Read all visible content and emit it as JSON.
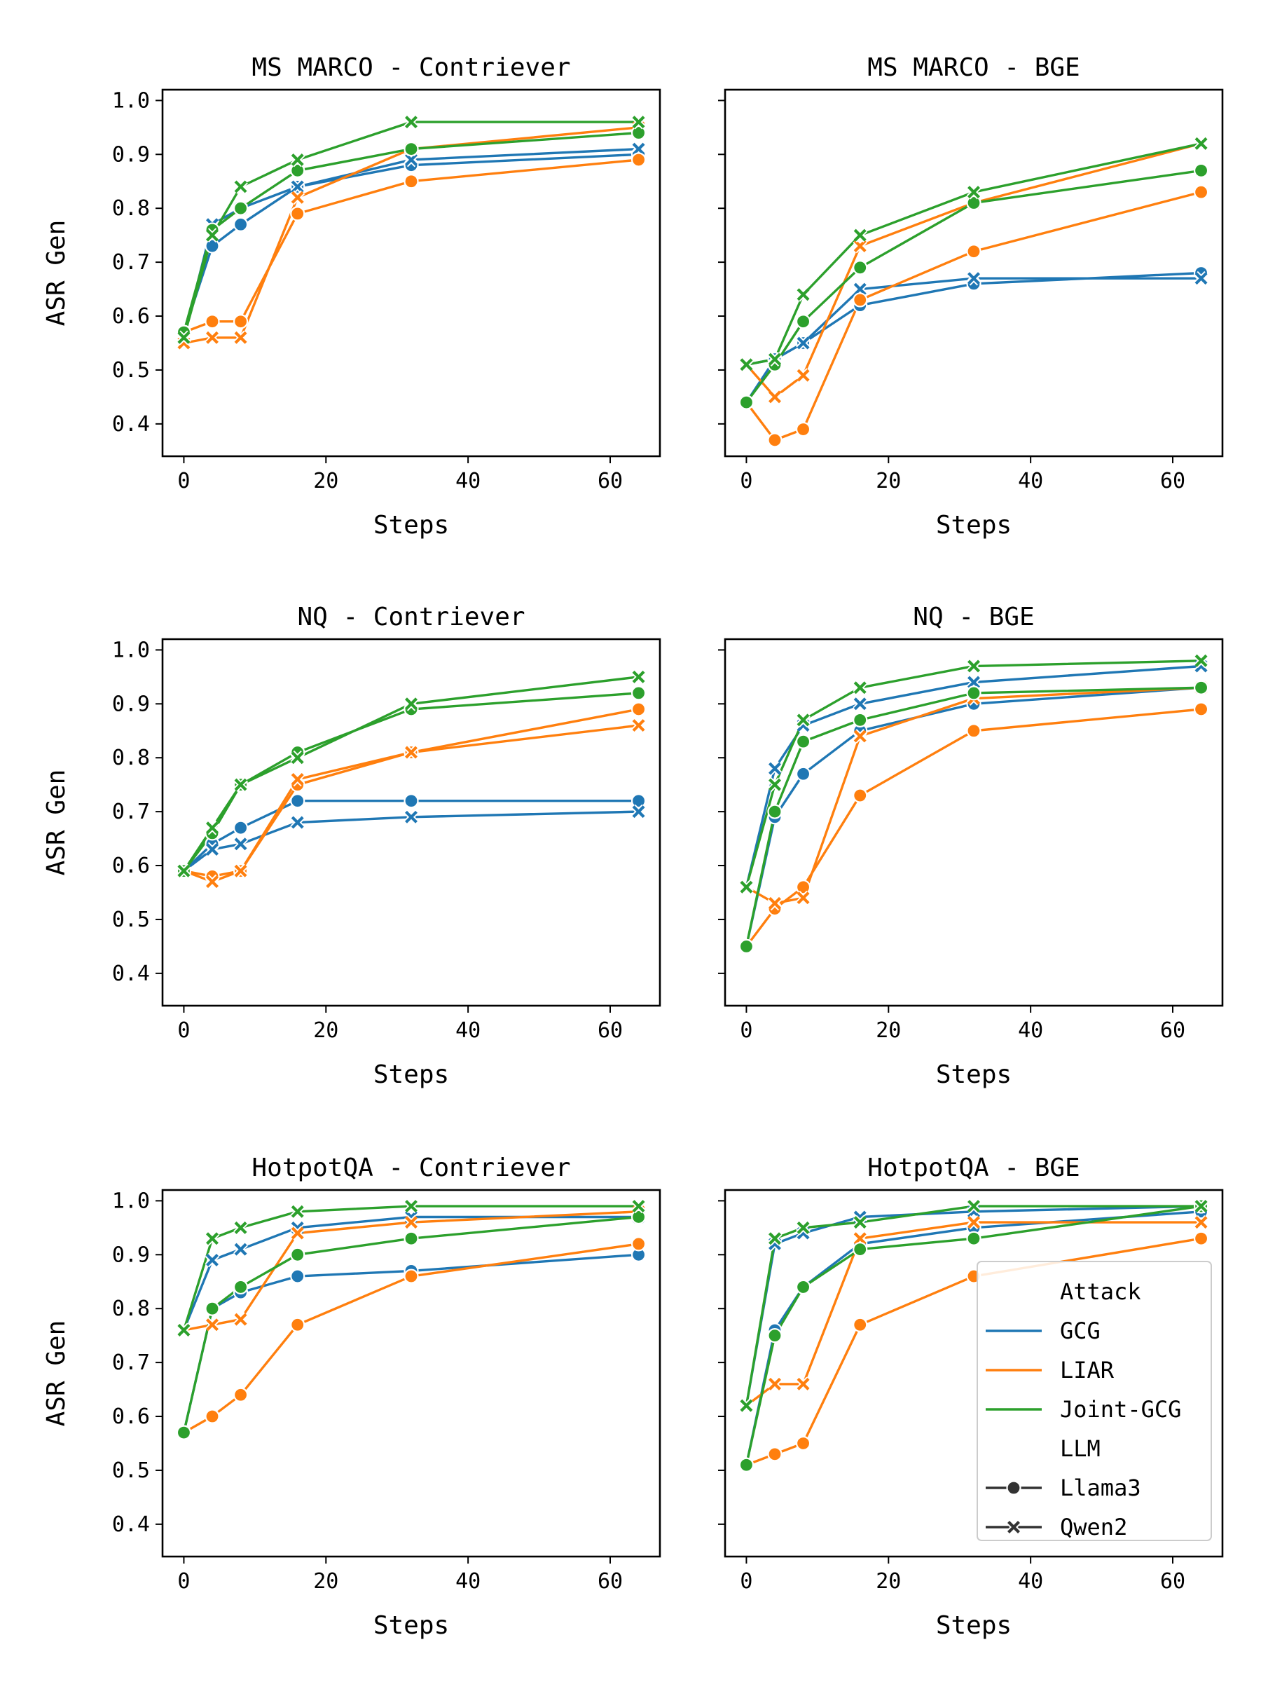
{
  "figure": {
    "attack_colors": {
      "GCG": "#1f77b4",
      "LIAR": "#ff7f0e",
      "Joint-GCG": "#2ca02c"
    },
    "marker_color_text": "#333333",
    "legend": {
      "attack_title": "Attack",
      "attack_entries": [
        "GCG",
        "LIAR",
        "Joint-GCG"
      ],
      "llm_title": "LLM",
      "llm_entries": [
        {
          "label": "Llama3",
          "marker": "circle"
        },
        {
          "label": "Qwen2",
          "marker": "x"
        }
      ],
      "placement": "lower-right of HotpotQA - BGE panel"
    }
  },
  "chart_data": [
    {
      "type": "line",
      "title": "MS MARCO - Contriever",
      "xlabel": "Steps",
      "ylabel": "ASR Gen",
      "xlim": [
        -3,
        67
      ],
      "ylim": [
        0.34,
        1.02
      ],
      "xticks": [
        "0",
        "20",
        "40",
        "60"
      ],
      "yticks": [
        "0.4",
        "0.5",
        "0.6",
        "0.7",
        "0.8",
        "0.9",
        "1.0"
      ],
      "x": [
        0,
        4,
        8,
        16,
        32,
        64
      ],
      "series": [
        {
          "name": "GCG / Llama3",
          "attack": "GCG",
          "llm": "Llama3",
          "values": [
            0.57,
            0.73,
            0.77,
            0.84,
            0.88,
            0.9
          ]
        },
        {
          "name": "GCG / Qwen2",
          "attack": "GCG",
          "llm": "Qwen2",
          "values": [
            0.56,
            0.77,
            0.8,
            0.84,
            0.89,
            0.91
          ]
        },
        {
          "name": "LIAR / Llama3",
          "attack": "LIAR",
          "llm": "Llama3",
          "values": [
            0.57,
            0.59,
            0.59,
            0.79,
            0.85,
            0.89
          ]
        },
        {
          "name": "LIAR / Qwen2",
          "attack": "LIAR",
          "llm": "Qwen2",
          "values": [
            0.55,
            0.56,
            0.56,
            0.82,
            0.91,
            0.95
          ]
        },
        {
          "name": "Joint-GCG / Llama3",
          "attack": "Joint-GCG",
          "llm": "Llama3",
          "values": [
            0.57,
            0.76,
            0.8,
            0.87,
            0.91,
            0.94
          ]
        },
        {
          "name": "Joint-GCG / Qwen2",
          "attack": "Joint-GCG",
          "llm": "Qwen2",
          "values": [
            0.56,
            0.75,
            0.84,
            0.89,
            0.96,
            0.96
          ]
        }
      ]
    },
    {
      "type": "line",
      "title": "MS MARCO - BGE",
      "xlabel": "Steps",
      "ylabel": "",
      "xlim": [
        -3,
        67
      ],
      "ylim": [
        0.34,
        1.02
      ],
      "xticks": [
        "0",
        "20",
        "40",
        "60"
      ],
      "yticks": [],
      "x": [
        0,
        4,
        8,
        16,
        32,
        64
      ],
      "series": [
        {
          "name": "GCG / Llama3",
          "attack": "GCG",
          "llm": "Llama3",
          "values": [
            0.44,
            0.52,
            0.55,
            0.62,
            0.66,
            0.68
          ]
        },
        {
          "name": "GCG / Qwen2",
          "attack": "GCG",
          "llm": "Qwen2",
          "values": [
            0.51,
            0.52,
            0.55,
            0.65,
            0.67,
            0.67
          ]
        },
        {
          "name": "LIAR / Llama3",
          "attack": "LIAR",
          "llm": "Llama3",
          "values": [
            0.44,
            0.37,
            0.39,
            0.63,
            0.72,
            0.83
          ]
        },
        {
          "name": "LIAR / Qwen2",
          "attack": "LIAR",
          "llm": "Qwen2",
          "values": [
            0.51,
            0.45,
            0.49,
            0.73,
            0.81,
            0.92
          ]
        },
        {
          "name": "Joint-GCG / Llama3",
          "attack": "Joint-GCG",
          "llm": "Llama3",
          "values": [
            0.44,
            0.51,
            0.59,
            0.69,
            0.81,
            0.87
          ]
        },
        {
          "name": "Joint-GCG / Qwen2",
          "attack": "Joint-GCG",
          "llm": "Qwen2",
          "values": [
            0.51,
            0.52,
            0.64,
            0.75,
            0.83,
            0.92
          ]
        }
      ]
    },
    {
      "type": "line",
      "title": "NQ - Contriever",
      "xlabel": "Steps",
      "ylabel": "ASR Gen",
      "xlim": [
        -3,
        67
      ],
      "ylim": [
        0.34,
        1.02
      ],
      "xticks": [
        "0",
        "20",
        "40",
        "60"
      ],
      "yticks": [
        "0.4",
        "0.5",
        "0.6",
        "0.7",
        "0.8",
        "0.9",
        "1.0"
      ],
      "x": [
        0,
        4,
        8,
        16,
        32,
        64
      ],
      "series": [
        {
          "name": "GCG / Llama3",
          "attack": "GCG",
          "llm": "Llama3",
          "values": [
            0.59,
            0.64,
            0.67,
            0.72,
            0.72,
            0.72
          ]
        },
        {
          "name": "GCG / Qwen2",
          "attack": "GCG",
          "llm": "Qwen2",
          "values": [
            0.59,
            0.63,
            0.64,
            0.68,
            0.69,
            0.7
          ]
        },
        {
          "name": "LIAR / Llama3",
          "attack": "LIAR",
          "llm": "Llama3",
          "values": [
            0.59,
            0.58,
            0.59,
            0.75,
            0.81,
            0.89
          ]
        },
        {
          "name": "LIAR / Qwen2",
          "attack": "LIAR",
          "llm": "Qwen2",
          "values": [
            0.59,
            0.57,
            0.59,
            0.76,
            0.81,
            0.86
          ]
        },
        {
          "name": "Joint-GCG / Llama3",
          "attack": "Joint-GCG",
          "llm": "Llama3",
          "values": [
            0.59,
            0.66,
            0.75,
            0.81,
            0.89,
            0.92
          ]
        },
        {
          "name": "Joint-GCG / Qwen2",
          "attack": "Joint-GCG",
          "llm": "Qwen2",
          "values": [
            0.59,
            0.67,
            0.75,
            0.8,
            0.9,
            0.95
          ]
        }
      ]
    },
    {
      "type": "line",
      "title": "NQ - BGE",
      "xlabel": "Steps",
      "ylabel": "",
      "xlim": [
        -3,
        67
      ],
      "ylim": [
        0.34,
        1.02
      ],
      "xticks": [
        "0",
        "20",
        "40",
        "60"
      ],
      "yticks": [],
      "x": [
        0,
        4,
        8,
        16,
        32,
        64
      ],
      "series": [
        {
          "name": "GCG / Llama3",
          "attack": "GCG",
          "llm": "Llama3",
          "values": [
            0.45,
            0.69,
            0.77,
            0.85,
            0.9,
            0.93
          ]
        },
        {
          "name": "GCG / Qwen2",
          "attack": "GCG",
          "llm": "Qwen2",
          "values": [
            0.56,
            0.78,
            0.86,
            0.9,
            0.94,
            0.97
          ]
        },
        {
          "name": "LIAR / Llama3",
          "attack": "LIAR",
          "llm": "Llama3",
          "values": [
            0.45,
            0.52,
            0.56,
            0.73,
            0.85,
            0.89
          ]
        },
        {
          "name": "LIAR / Qwen2",
          "attack": "LIAR",
          "llm": "Qwen2",
          "values": [
            0.56,
            0.53,
            0.54,
            0.84,
            0.91,
            0.93
          ]
        },
        {
          "name": "Joint-GCG / Llama3",
          "attack": "Joint-GCG",
          "llm": "Llama3",
          "values": [
            0.45,
            0.7,
            0.83,
            0.87,
            0.92,
            0.93
          ]
        },
        {
          "name": "Joint-GCG / Qwen2",
          "attack": "Joint-GCG",
          "llm": "Qwen2",
          "values": [
            0.56,
            0.75,
            0.87,
            0.93,
            0.97,
            0.98
          ]
        }
      ]
    },
    {
      "type": "line",
      "title": "HotpotQA - Contriever",
      "xlabel": "Steps",
      "ylabel": "ASR Gen",
      "xlim": [
        -3,
        67
      ],
      "ylim": [
        0.34,
        1.02
      ],
      "xticks": [
        "0",
        "20",
        "40",
        "60"
      ],
      "yticks": [
        "0.4",
        "0.5",
        "0.6",
        "0.7",
        "0.8",
        "0.9",
        "1.0"
      ],
      "x": [
        0,
        4,
        8,
        16,
        32,
        64
      ],
      "series": [
        {
          "name": "GCG / Llama3",
          "attack": "GCG",
          "llm": "Llama3",
          "values": [
            0.57,
            0.8,
            0.83,
            0.86,
            0.87,
            0.9
          ]
        },
        {
          "name": "GCG / Qwen2",
          "attack": "GCG",
          "llm": "Qwen2",
          "values": [
            0.76,
            0.89,
            0.91,
            0.95,
            0.97,
            0.97
          ]
        },
        {
          "name": "LIAR / Llama3",
          "attack": "LIAR",
          "llm": "Llama3",
          "values": [
            0.57,
            0.6,
            0.64,
            0.77,
            0.86,
            0.92
          ]
        },
        {
          "name": "LIAR / Qwen2",
          "attack": "LIAR",
          "llm": "Qwen2",
          "values": [
            0.76,
            0.77,
            0.78,
            0.94,
            0.96,
            0.98
          ]
        },
        {
          "name": "Joint-GCG / Llama3",
          "attack": "Joint-GCG",
          "llm": "Llama3",
          "values": [
            0.57,
            0.8,
            0.84,
            0.9,
            0.93,
            0.97
          ]
        },
        {
          "name": "Joint-GCG / Qwen2",
          "attack": "Joint-GCG",
          "llm": "Qwen2",
          "values": [
            0.76,
            0.93,
            0.95,
            0.98,
            0.99,
            0.99
          ]
        }
      ]
    },
    {
      "type": "line",
      "title": "HotpotQA - BGE",
      "xlabel": "Steps",
      "ylabel": "",
      "xlim": [
        -3,
        67
      ],
      "ylim": [
        0.34,
        1.02
      ],
      "xticks": [
        "0",
        "20",
        "40",
        "60"
      ],
      "yticks": [],
      "x": [
        0,
        4,
        8,
        16,
        32,
        64
      ],
      "series": [
        {
          "name": "GCG / Llama3",
          "attack": "GCG",
          "llm": "Llama3",
          "values": [
            0.51,
            0.76,
            0.84,
            0.92,
            0.95,
            0.98
          ]
        },
        {
          "name": "GCG / Qwen2",
          "attack": "GCG",
          "llm": "Qwen2",
          "values": [
            0.62,
            0.92,
            0.94,
            0.97,
            0.98,
            0.99
          ]
        },
        {
          "name": "LIAR / Llama3",
          "attack": "LIAR",
          "llm": "Llama3",
          "values": [
            0.51,
            0.53,
            0.55,
            0.77,
            0.86,
            0.93
          ]
        },
        {
          "name": "LIAR / Qwen2",
          "attack": "LIAR",
          "llm": "Qwen2",
          "values": [
            0.62,
            0.66,
            0.66,
            0.93,
            0.96,
            0.96
          ]
        },
        {
          "name": "Joint-GCG / Llama3",
          "attack": "Joint-GCG",
          "llm": "Llama3",
          "values": [
            0.51,
            0.75,
            0.84,
            0.91,
            0.93,
            0.99
          ]
        },
        {
          "name": "Joint-GCG / Qwen2",
          "attack": "Joint-GCG",
          "llm": "Qwen2",
          "values": [
            0.62,
            0.93,
            0.95,
            0.96,
            0.99,
            0.99
          ]
        }
      ]
    }
  ]
}
